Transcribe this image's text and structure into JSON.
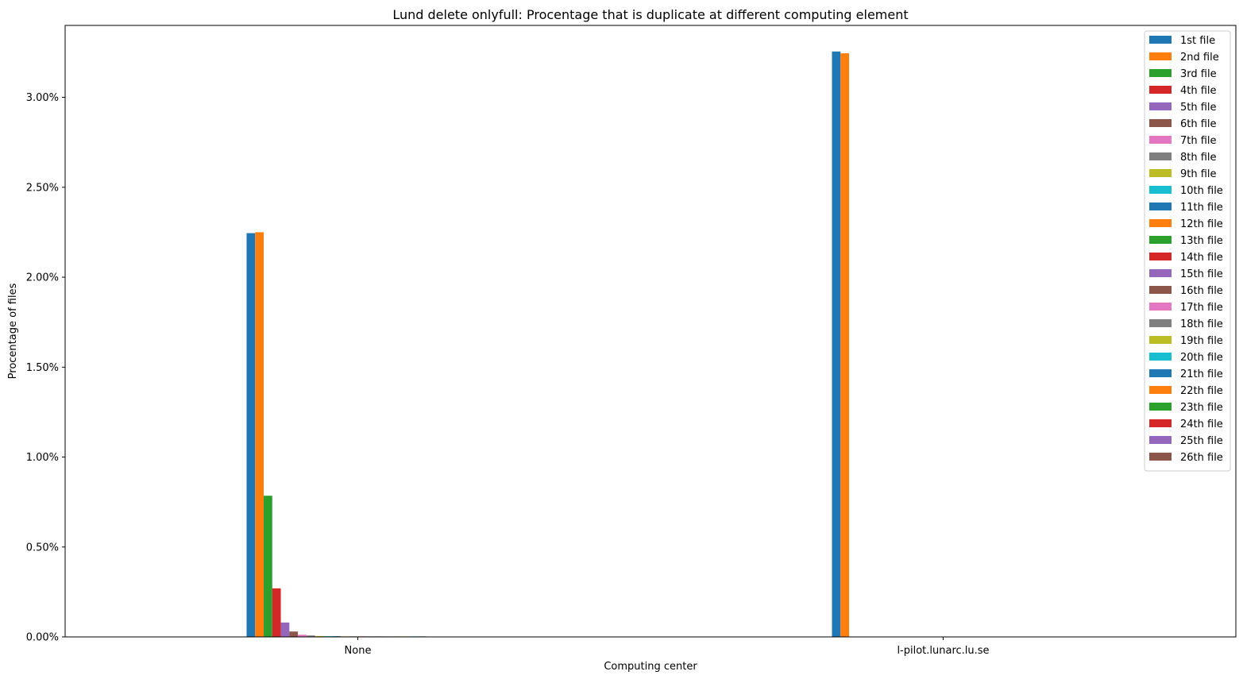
{
  "chart_data": {
    "type": "bar",
    "title": "Lund delete onlyfull: Procentage that is duplicate at different computing element",
    "xlabel": "Computing center",
    "ylabel": "Procentage of files",
    "categories": [
      "None",
      "l-pilot.lunarc.lu.se"
    ],
    "ylim": [
      0,
      3.4
    ],
    "y_ticks": [
      0,
      0.5,
      1.0,
      1.5,
      2.0,
      2.5,
      3.0
    ],
    "y_tick_labels": [
      "0.00%",
      "0.50%",
      "1.00%",
      "1.50%",
      "2.00%",
      "2.50%",
      "3.00%"
    ],
    "grid": false,
    "legend_position": "top-right",
    "series": [
      {
        "name": "1st file",
        "color": "#1f77b4",
        "values": [
          2.245,
          3.255
        ]
      },
      {
        "name": "2nd file",
        "color": "#ff7f0e",
        "values": [
          2.25,
          3.245
        ]
      },
      {
        "name": "3rd file",
        "color": "#2ca02c",
        "values": [
          0.785,
          0
        ]
      },
      {
        "name": "4th file",
        "color": "#d62728",
        "values": [
          0.27,
          0
        ]
      },
      {
        "name": "5th file",
        "color": "#9467bd",
        "values": [
          0.08,
          0
        ]
      },
      {
        "name": "6th file",
        "color": "#8c564b",
        "values": [
          0.03,
          0
        ]
      },
      {
        "name": "7th file",
        "color": "#e377c2",
        "values": [
          0.012,
          0
        ]
      },
      {
        "name": "8th file",
        "color": "#7f7f7f",
        "values": [
          0.008,
          0
        ]
      },
      {
        "name": "9th file",
        "color": "#bcbd22",
        "values": [
          0.005,
          0
        ]
      },
      {
        "name": "10th file",
        "color": "#17becf",
        "values": [
          0.004,
          0
        ]
      },
      {
        "name": "11th file",
        "color": "#1f77b4",
        "values": [
          0.004,
          0
        ]
      },
      {
        "name": "12th file",
        "color": "#ff7f0e",
        "values": [
          0.003,
          0
        ]
      },
      {
        "name": "13th file",
        "color": "#2ca02c",
        "values": [
          0.003,
          0
        ]
      },
      {
        "name": "14th file",
        "color": "#d62728",
        "values": [
          0.003,
          0
        ]
      },
      {
        "name": "15th file",
        "color": "#9467bd",
        "values": [
          0.003,
          0
        ]
      },
      {
        "name": "16th file",
        "color": "#8c564b",
        "values": [
          0.003,
          0
        ]
      },
      {
        "name": "17th file",
        "color": "#e377c2",
        "values": [
          0.003,
          0
        ]
      },
      {
        "name": "18th file",
        "color": "#7f7f7f",
        "values": [
          0.003,
          0
        ]
      },
      {
        "name": "19th file",
        "color": "#bcbd22",
        "values": [
          0.003,
          0
        ]
      },
      {
        "name": "20th file",
        "color": "#17becf",
        "values": [
          0.003,
          0
        ]
      },
      {
        "name": "21th file",
        "color": "#1f77b4",
        "values": [
          0.003,
          0
        ]
      },
      {
        "name": "22th file",
        "color": "#ff7f0e",
        "values": [
          0.002,
          0
        ]
      },
      {
        "name": "23th file",
        "color": "#2ca02c",
        "values": [
          0.002,
          0
        ]
      },
      {
        "name": "24th file",
        "color": "#d62728",
        "values": [
          0.002,
          0
        ]
      },
      {
        "name": "25th file",
        "color": "#9467bd",
        "values": [
          0.002,
          0
        ]
      },
      {
        "name": "26th file",
        "color": "#8c564b",
        "values": [
          0.002,
          0
        ]
      }
    ]
  }
}
